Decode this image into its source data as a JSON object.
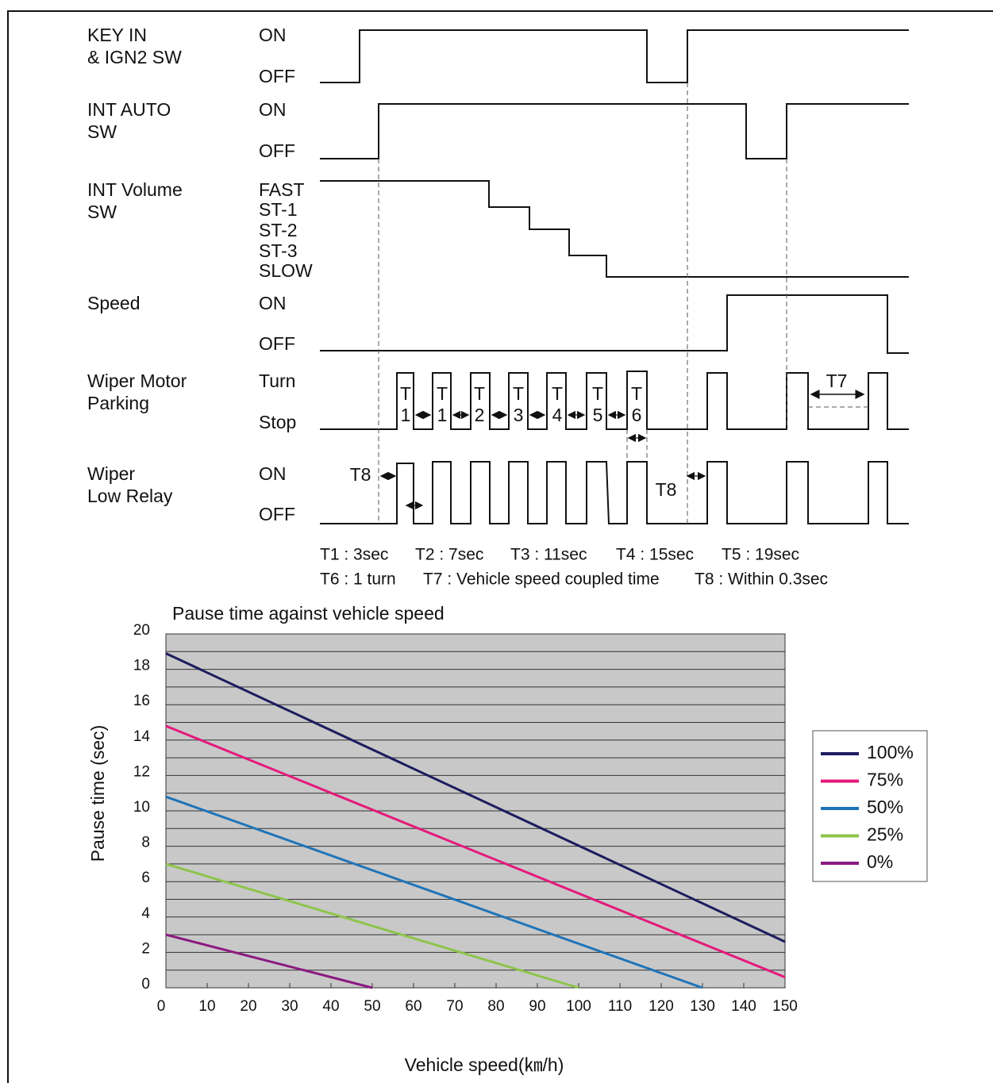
{
  "timing_diagram": {
    "signals": [
      {
        "name": [
          "KEY IN",
          "& IGN2 SW"
        ],
        "states": [
          "ON",
          "OFF"
        ]
      },
      {
        "name": [
          "INT AUTO",
          "SW"
        ],
        "states": [
          "ON",
          "OFF"
        ]
      },
      {
        "name": [
          "INT Volume",
          "SW"
        ],
        "states": [
          "FAST",
          "ST-1",
          "ST-2",
          "ST-3",
          "SLOW"
        ]
      },
      {
        "name": [
          "Speed"
        ],
        "states": [
          "ON",
          "OFF"
        ]
      },
      {
        "name": [
          "Wiper Motor",
          "Parking"
        ],
        "states": [
          "Turn",
          "Stop"
        ]
      },
      {
        "name": [
          "Wiper",
          "Low Relay"
        ],
        "states": [
          "ON",
          "OFF"
        ]
      }
    ],
    "interval_labels": [
      [
        "T",
        "1"
      ],
      [
        "T",
        "1"
      ],
      [
        "T",
        "2"
      ],
      [
        "T",
        "3"
      ],
      [
        "T",
        "4"
      ],
      [
        "T",
        "5"
      ],
      [
        "T",
        "6"
      ]
    ],
    "t7_label": "T7",
    "t8_labels": [
      "T8",
      "T8"
    ],
    "notes": [
      [
        "T1 : 3sec",
        "T2 : 7sec",
        "T3 : 11sec",
        "T4 : 15sec",
        "T5 : 19sec"
      ],
      [
        "T6 : 1 turn",
        "T7 : Vehicle speed coupled time",
        "T8 : Within 0.3sec"
      ]
    ]
  },
  "chart_data": {
    "type": "line",
    "title": "Pause time against vehicle speed",
    "x_label": "Vehicle speed(㎞/h)",
    "y_label": "Pause time (sec)",
    "xlim": [
      0,
      150
    ],
    "ylim": [
      0,
      20
    ],
    "xticks": [
      0,
      10,
      20,
      30,
      40,
      50,
      60,
      70,
      80,
      90,
      100,
      110,
      120,
      130,
      140,
      150
    ],
    "yticks": [
      0,
      2,
      4,
      6,
      8,
      10,
      12,
      14,
      16,
      18,
      20
    ],
    "grid": true,
    "series": [
      {
        "name": "100%",
        "color": "#1c1d5e",
        "x": [
          0,
          150
        ],
        "values": [
          18.9,
          2.6
        ]
      },
      {
        "name": "75%",
        "color": "#e5197b",
        "x": [
          0,
          150
        ],
        "values": [
          14.8,
          0.6
        ]
      },
      {
        "name": "50%",
        "color": "#1f74b8",
        "x": [
          0,
          130
        ],
        "values": [
          10.8,
          0
        ]
      },
      {
        "name": "25%",
        "color": "#8dc44b",
        "x": [
          0,
          100
        ],
        "values": [
          7,
          0
        ]
      },
      {
        "name": "0%",
        "color": "#8b1a80",
        "x": [
          0,
          50
        ],
        "values": [
          3,
          0
        ]
      }
    ]
  }
}
